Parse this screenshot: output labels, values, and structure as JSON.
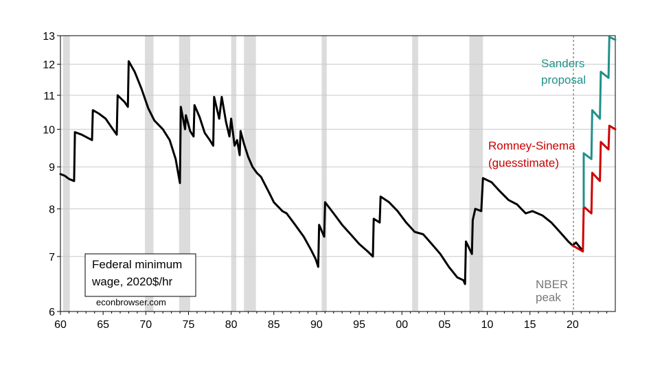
{
  "chart_data": {
    "type": "line",
    "title": "",
    "xlabel": "",
    "ylabel": "",
    "x_range": [
      1960,
      2025
    ],
    "ylim": [
      6,
      13
    ],
    "y_scale": "log",
    "grid": "horizontal",
    "x_ticks": [
      {
        "value": 1960,
        "label": "60"
      },
      {
        "value": 1965,
        "label": "65"
      },
      {
        "value": 1970,
        "label": "70"
      },
      {
        "value": 1975,
        "label": "75"
      },
      {
        "value": 1980,
        "label": "80"
      },
      {
        "value": 1985,
        "label": "85"
      },
      {
        "value": 1990,
        "label": "90"
      },
      {
        "value": 1995,
        "label": "95"
      },
      {
        "value": 2000,
        "label": "00"
      },
      {
        "value": 2005,
        "label": "05"
      },
      {
        "value": 2010,
        "label": "10"
      },
      {
        "value": 2015,
        "label": "15"
      },
      {
        "value": 2020,
        "label": "20"
      }
    ],
    "y_ticks": [
      {
        "value": 6,
        "label": "6"
      },
      {
        "value": 7,
        "label": "7"
      },
      {
        "value": 8,
        "label": "8"
      },
      {
        "value": 9,
        "label": "9"
      },
      {
        "value": 10,
        "label": "10"
      },
      {
        "value": 11,
        "label": "11"
      },
      {
        "value": 12,
        "label": "12"
      },
      {
        "value": 13,
        "label": "13"
      }
    ],
    "recessions": [
      [
        1960.3,
        1961.1
      ],
      [
        1969.9,
        1970.9
      ],
      [
        1973.9,
        1975.2
      ],
      [
        1980.0,
        1980.6
      ],
      [
        1981.5,
        1982.9
      ],
      [
        1990.6,
        1991.2
      ],
      [
        2001.2,
        2001.9
      ],
      [
        2007.9,
        2009.5
      ]
    ],
    "nber_peak": {
      "x": 2020.1,
      "label_lines": [
        "NBER",
        "peak"
      ],
      "color": "#777777"
    },
    "series": [
      {
        "key": "federal",
        "color": "#000000",
        "points": [
          [
            1960.0,
            8.82
          ],
          [
            1960.5,
            8.78
          ],
          [
            1961.0,
            8.7
          ],
          [
            1961.6,
            8.65
          ],
          [
            1961.7,
            9.92
          ],
          [
            1962.5,
            9.85
          ],
          [
            1963.3,
            9.75
          ],
          [
            1963.7,
            9.7
          ],
          [
            1963.8,
            10.55
          ],
          [
            1964.5,
            10.45
          ],
          [
            1965.3,
            10.3
          ],
          [
            1966.0,
            10.05
          ],
          [
            1966.6,
            9.85
          ],
          [
            1966.7,
            11.0
          ],
          [
            1967.5,
            10.8
          ],
          [
            1967.9,
            10.65
          ],
          [
            1968.0,
            12.1
          ],
          [
            1968.7,
            11.75
          ],
          [
            1969.5,
            11.2
          ],
          [
            1970.3,
            10.6
          ],
          [
            1971.0,
            10.25
          ],
          [
            1972.0,
            10.0
          ],
          [
            1972.8,
            9.7
          ],
          [
            1973.5,
            9.2
          ],
          [
            1974.0,
            8.6
          ],
          [
            1974.1,
            10.65
          ],
          [
            1974.6,
            10.0
          ],
          [
            1974.7,
            10.4
          ],
          [
            1975.2,
            9.95
          ],
          [
            1975.6,
            9.8
          ],
          [
            1975.7,
            10.7
          ],
          [
            1976.3,
            10.35
          ],
          [
            1976.9,
            9.9
          ],
          [
            1977.5,
            9.7
          ],
          [
            1977.9,
            9.55
          ],
          [
            1978.0,
            10.95
          ],
          [
            1978.6,
            10.3
          ],
          [
            1978.9,
            10.95
          ],
          [
            1979.4,
            10.2
          ],
          [
            1979.8,
            9.8
          ],
          [
            1980.0,
            10.3
          ],
          [
            1980.4,
            9.55
          ],
          [
            1980.7,
            9.7
          ],
          [
            1981.0,
            9.3
          ],
          [
            1981.1,
            9.95
          ],
          [
            1981.5,
            9.6
          ],
          [
            1982.0,
            9.25
          ],
          [
            1982.5,
            9.0
          ],
          [
            1983.0,
            8.85
          ],
          [
            1983.5,
            8.75
          ],
          [
            1984.0,
            8.55
          ],
          [
            1984.5,
            8.35
          ],
          [
            1985.0,
            8.15
          ],
          [
            1985.5,
            8.05
          ],
          [
            1986.0,
            7.95
          ],
          [
            1986.5,
            7.9
          ],
          [
            1987.5,
            7.65
          ],
          [
            1988.5,
            7.4
          ],
          [
            1989.3,
            7.15
          ],
          [
            1989.9,
            6.95
          ],
          [
            1990.2,
            6.8
          ],
          [
            1990.3,
            7.65
          ],
          [
            1990.9,
            7.4
          ],
          [
            1991.0,
            8.15
          ],
          [
            1992.0,
            7.9
          ],
          [
            1993.0,
            7.65
          ],
          [
            1994.0,
            7.45
          ],
          [
            1995.0,
            7.25
          ],
          [
            1996.0,
            7.1
          ],
          [
            1996.6,
            7.0
          ],
          [
            1996.7,
            7.78
          ],
          [
            1997.4,
            7.7
          ],
          [
            1997.5,
            8.28
          ],
          [
            1998.5,
            8.15
          ],
          [
            1999.5,
            7.95
          ],
          [
            2000.5,
            7.7
          ],
          [
            2001.5,
            7.5
          ],
          [
            2002.5,
            7.45
          ],
          [
            2003.5,
            7.25
          ],
          [
            2004.5,
            7.05
          ],
          [
            2005.5,
            6.8
          ],
          [
            2006.5,
            6.6
          ],
          [
            2007.2,
            6.55
          ],
          [
            2007.4,
            6.48
          ],
          [
            2007.5,
            7.3
          ],
          [
            2008.2,
            7.05
          ],
          [
            2008.3,
            7.75
          ],
          [
            2008.6,
            8.0
          ],
          [
            2009.3,
            7.95
          ],
          [
            2009.5,
            8.72
          ],
          [
            2010.5,
            8.62
          ],
          [
            2011.5,
            8.4
          ],
          [
            2012.5,
            8.2
          ],
          [
            2013.5,
            8.1
          ],
          [
            2014.5,
            7.9
          ],
          [
            2015.3,
            7.95
          ],
          [
            2016.5,
            7.85
          ],
          [
            2017.5,
            7.7
          ],
          [
            2018.5,
            7.5
          ],
          [
            2019.5,
            7.3
          ],
          [
            2020.0,
            7.22
          ],
          [
            2020.4,
            7.28
          ],
          [
            2021.0,
            7.15
          ]
        ]
      },
      {
        "key": "romney_sinema",
        "name": "Romney-Sinema (guesstimate)",
        "color": "#cc0000",
        "points": [
          [
            2020.0,
            7.22
          ],
          [
            2021.2,
            7.1
          ],
          [
            2021.3,
            8.05
          ],
          [
            2022.2,
            7.9
          ],
          [
            2022.3,
            8.85
          ],
          [
            2023.2,
            8.65
          ],
          [
            2023.3,
            9.65
          ],
          [
            2024.2,
            9.45
          ],
          [
            2024.3,
            10.1
          ],
          [
            2025.0,
            10.0
          ]
        ]
      },
      {
        "key": "sanders",
        "name": "Sanders proposal",
        "color": "#20908a",
        "points": [
          [
            2021.3,
            8.05
          ],
          [
            2021.3,
            9.35
          ],
          [
            2022.2,
            9.2
          ],
          [
            2022.3,
            10.55
          ],
          [
            2023.2,
            10.3
          ],
          [
            2023.3,
            11.75
          ],
          [
            2024.2,
            11.55
          ],
          [
            2024.3,
            12.95
          ],
          [
            2025.0,
            12.85
          ]
        ]
      }
    ],
    "legend_lines": [
      "Federal minimum",
      "wage, 2020$/hr"
    ],
    "source": "econbrowser.com",
    "annotations": {
      "sanders": {
        "lines": [
          "Sanders",
          "proposal"
        ],
        "color": "#20908a"
      },
      "romney": {
        "lines": [
          "Romney-Sinema",
          "(guesstimate)"
        ],
        "color": "#cc0000"
      }
    }
  }
}
